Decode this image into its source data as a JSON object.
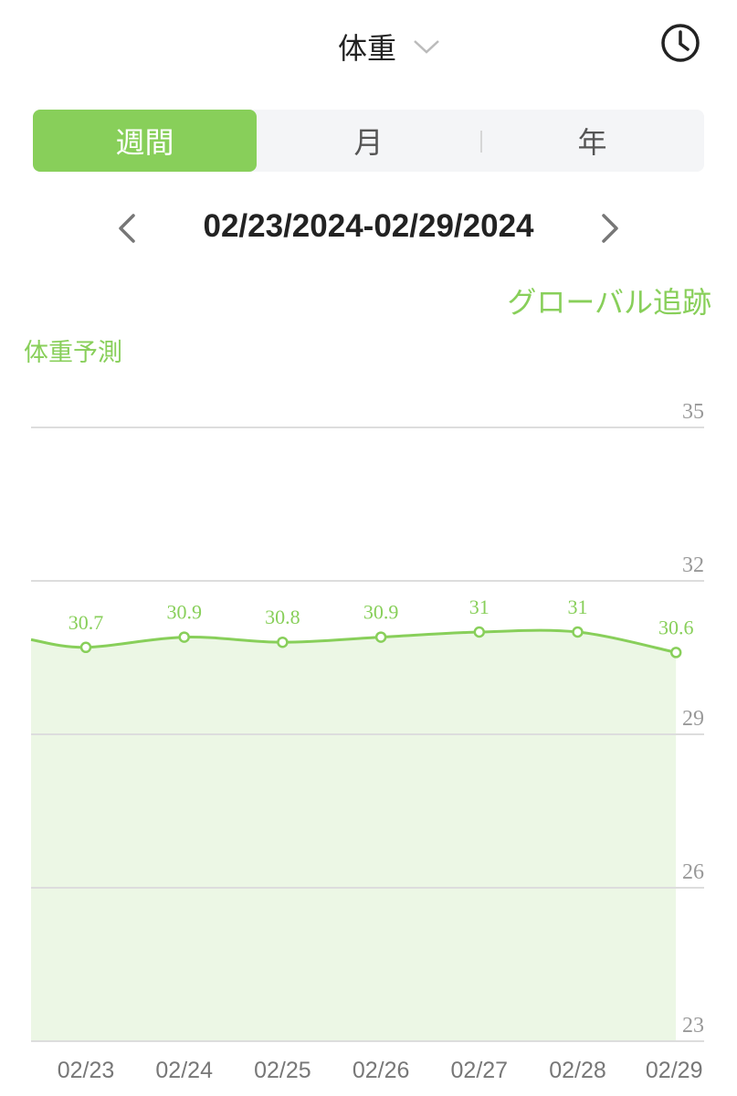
{
  "header": {
    "title": "体重",
    "dropdown_icon": "chevron-down-icon",
    "history_icon": "clock-icon"
  },
  "tabs": [
    {
      "label": "週間",
      "active": true
    },
    {
      "label": "月",
      "active": false
    },
    {
      "label": "年",
      "active": false
    }
  ],
  "date_nav": {
    "range": "02/23/2024-02/29/2024",
    "prev_icon": "chevron-left-icon",
    "next_icon": "chevron-right-icon"
  },
  "global_tracking_label": "グローバル追跡",
  "chart_subtitle": "体重予測",
  "colors": {
    "accent": "#88cf5a",
    "fill": "#ecf7e5",
    "grid": "#dddddd"
  },
  "chart_data": {
    "type": "area",
    "categories": [
      "02/23",
      "02/24",
      "02/25",
      "02/26",
      "02/27",
      "02/28",
      "02/29"
    ],
    "values": [
      30.7,
      30.9,
      30.8,
      30.9,
      31,
      31,
      30.6
    ],
    "data_labels": [
      "30.7",
      "30.9",
      "30.8",
      "30.9",
      "31",
      "31",
      "30.6"
    ],
    "y_ticks": [
      35,
      32,
      29,
      26,
      23
    ],
    "ylim": [
      23,
      35
    ],
    "grid": true,
    "legend": "none"
  }
}
